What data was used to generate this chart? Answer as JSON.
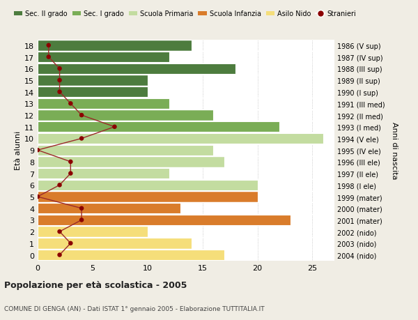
{
  "ages": [
    18,
    17,
    16,
    15,
    14,
    13,
    12,
    11,
    10,
    9,
    8,
    7,
    6,
    5,
    4,
    3,
    2,
    1,
    0
  ],
  "right_labels": [
    "1986 (V sup)",
    "1987 (IV sup)",
    "1988 (III sup)",
    "1989 (II sup)",
    "1990 (I sup)",
    "1991 (III med)",
    "1992 (II med)",
    "1993 (I med)",
    "1994 (V ele)",
    "1995 (IV ele)",
    "1996 (III ele)",
    "1997 (II ele)",
    "1998 (I ele)",
    "1999 (mater)",
    "2000 (mater)",
    "2001 (mater)",
    "2002 (nido)",
    "2003 (nido)",
    "2004 (nido)"
  ],
  "bar_values": [
    14,
    12,
    18,
    10,
    10,
    12,
    16,
    22,
    26,
    16,
    17,
    12,
    20,
    20,
    13,
    23,
    10,
    14,
    17
  ],
  "bar_colors": [
    "#4d7c3e",
    "#4d7c3e",
    "#4d7c3e",
    "#4d7c3e",
    "#4d7c3e",
    "#7aad56",
    "#7aad56",
    "#7aad56",
    "#c3dca0",
    "#c3dca0",
    "#c3dca0",
    "#c3dca0",
    "#c3dca0",
    "#d97c2b",
    "#d97c2b",
    "#d97c2b",
    "#f5de7a",
    "#f5de7a",
    "#f5de7a"
  ],
  "stranieri_values": [
    1,
    1,
    2,
    2,
    2,
    3,
    4,
    7,
    4,
    0,
    3,
    3,
    2,
    0,
    4,
    4,
    2,
    3,
    2
  ],
  "legend_labels": [
    "Sec. II grado",
    "Sec. I grado",
    "Scuola Primaria",
    "Scuola Infanzia",
    "Asilo Nido",
    "Stranieri"
  ],
  "legend_colors": [
    "#4d7c3e",
    "#7aad56",
    "#c3dca0",
    "#d97c2b",
    "#f5de7a",
    "#8b0000"
  ],
  "ylabel_left": "Età alunni",
  "ylabel_right": "Anni di nascita",
  "xlim": [
    0,
    27
  ],
  "xticks": [
    0,
    5,
    10,
    15,
    20,
    25
  ],
  "title": "Popolazione per età scolastica - 2005",
  "subtitle": "COMUNE DI GENGA (AN) - Dati ISTAT 1° gennaio 2005 - Elaborazione TUTTITALIA.IT",
  "bg_color": "#f0ede4",
  "plot_bg_color": "#ffffff",
  "stranieri_line_color": "#9b2a2a",
  "stranieri_dot_color": "#8b0000"
}
